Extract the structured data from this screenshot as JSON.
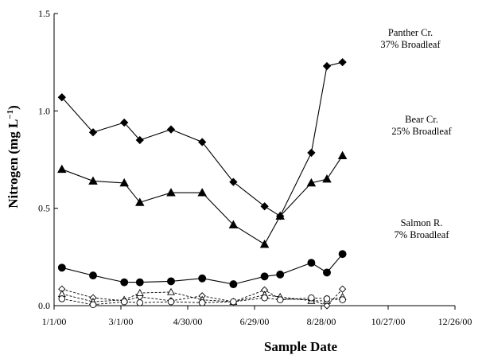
{
  "chart_data": {
    "type": "line",
    "title": "",
    "xlabel": "Sample Date",
    "ylabel_main": "Nitrogen (mg L",
    "ylabel_sup": "−1",
    "ylabel_close": ")",
    "xlim": [
      "2000-01-01",
      "2000-12-26"
    ],
    "ylim": [
      0,
      1.5
    ],
    "x_ticks": [
      {
        "date": "2000-01-01",
        "label": "1/1/00"
      },
      {
        "date": "2000-03-01",
        "label": "3/1/00"
      },
      {
        "date": "2000-04-30",
        "label": "4/30/00"
      },
      {
        "date": "2000-06-29",
        "label": "6/29/00"
      },
      {
        "date": "2000-08-28",
        "label": "8/28/00"
      },
      {
        "date": "2000-10-27",
        "label": "10/27/00"
      },
      {
        "date": "2000-12-26",
        "label": "12/26/00"
      }
    ],
    "y_ticks": [
      {
        "value": 0,
        "label": "0.0"
      },
      {
        "value": 0.5,
        "label": "0.5"
      },
      {
        "value": 1.0,
        "label": "1.0"
      },
      {
        "value": 1.5,
        "label": "1.5"
      }
    ],
    "grid": false,
    "annotations": [
      {
        "series": "Panther Cr.",
        "lines": [
          "Panther Cr.",
          "37% Broadleaf"
        ]
      },
      {
        "series": "Bear Cr.",
        "lines": [
          "Bear Cr.",
          "25% Broadleaf"
        ]
      },
      {
        "series": "Salmon R.",
        "lines": [
          "Salmon R.",
          "7% Broadleaf"
        ]
      }
    ],
    "series": [
      {
        "name": "Panther Cr.",
        "marker": "diamond",
        "filled": true,
        "dashed": false,
        "points": [
          [
            "2000-01-08",
            1.07
          ],
          [
            "2000-02-05",
            0.89
          ],
          [
            "2000-03-04",
            0.94
          ],
          [
            "2000-03-18",
            0.85
          ],
          [
            "2000-04-15",
            0.905
          ],
          [
            "2000-05-13",
            0.84
          ],
          [
            "2000-06-10",
            0.635
          ],
          [
            "2000-07-08",
            0.51
          ],
          [
            "2000-07-22",
            0.46
          ],
          [
            "2000-08-19",
            0.785
          ],
          [
            "2000-09-02",
            1.23
          ],
          [
            "2000-09-16",
            1.25
          ]
        ]
      },
      {
        "name": "Bear Cr.",
        "marker": "triangle",
        "filled": true,
        "dashed": false,
        "points": [
          [
            "2000-01-08",
            0.7
          ],
          [
            "2000-02-05",
            0.64
          ],
          [
            "2000-03-04",
            0.63
          ],
          [
            "2000-03-18",
            0.53
          ],
          [
            "2000-04-15",
            0.58
          ],
          [
            "2000-05-13",
            0.58
          ],
          [
            "2000-06-10",
            0.415
          ],
          [
            "2000-07-08",
            0.315
          ],
          [
            "2000-07-22",
            0.46
          ],
          [
            "2000-08-19",
            0.63
          ],
          [
            "2000-09-02",
            0.65
          ],
          [
            "2000-09-16",
            0.77
          ]
        ]
      },
      {
        "name": "Salmon R.",
        "marker": "circle",
        "filled": true,
        "dashed": false,
        "points": [
          [
            "2000-01-08",
            0.195
          ],
          [
            "2000-02-05",
            0.155
          ],
          [
            "2000-03-04",
            0.12
          ],
          [
            "2000-03-18",
            0.12
          ],
          [
            "2000-04-15",
            0.125
          ],
          [
            "2000-05-13",
            0.14
          ],
          [
            "2000-06-10",
            0.11
          ],
          [
            "2000-07-08",
            0.15
          ],
          [
            "2000-07-22",
            0.16
          ],
          [
            "2000-08-19",
            0.22
          ],
          [
            "2000-09-02",
            0.17
          ],
          [
            "2000-09-16",
            0.265
          ]
        ]
      },
      {
        "name": "Panther Cr. (open)",
        "marker": "diamond",
        "filled": false,
        "dashed": true,
        "points": [
          [
            "2000-01-08",
            0.085
          ],
          [
            "2000-02-05",
            0.04
          ],
          [
            "2000-03-04",
            0.025
          ],
          [
            "2000-03-18",
            0.045
          ],
          [
            "2000-04-15",
            0.025
          ],
          [
            "2000-05-13",
            0.05
          ],
          [
            "2000-06-10",
            0.02
          ],
          [
            "2000-07-08",
            0.08
          ],
          [
            "2000-07-22",
            0.035
          ],
          [
            "2000-08-19",
            0.03
          ],
          [
            "2000-09-02",
            0.0
          ],
          [
            "2000-09-16",
            0.085
          ]
        ]
      },
      {
        "name": "Bear Cr. (open)",
        "marker": "triangle",
        "filled": false,
        "dashed": true,
        "points": [
          [
            "2000-01-08",
            0.06
          ],
          [
            "2000-02-05",
            0.02
          ],
          [
            "2000-03-04",
            0.03
          ],
          [
            "2000-03-18",
            0.065
          ],
          [
            "2000-04-15",
            0.07
          ],
          [
            "2000-05-13",
            0.03
          ],
          [
            "2000-06-10",
            0.02
          ],
          [
            "2000-07-08",
            0.055
          ],
          [
            "2000-07-22",
            0.045
          ],
          [
            "2000-08-19",
            0.025
          ],
          [
            "2000-09-02",
            0.025
          ],
          [
            "2000-09-16",
            0.045
          ]
        ]
      },
      {
        "name": "Salmon R. (open)",
        "marker": "circle",
        "filled": false,
        "dashed": true,
        "points": [
          [
            "2000-01-08",
            0.035
          ],
          [
            "2000-02-05",
            0.005
          ],
          [
            "2000-03-04",
            0.02
          ],
          [
            "2000-03-18",
            0.015
          ],
          [
            "2000-04-15",
            0.02
          ],
          [
            "2000-05-13",
            0.015
          ],
          [
            "2000-06-10",
            0.02
          ],
          [
            "2000-07-08",
            0.04
          ],
          [
            "2000-07-22",
            0.03
          ],
          [
            "2000-08-19",
            0.04
          ],
          [
            "2000-09-02",
            0.035
          ],
          [
            "2000-09-16",
            0.03
          ]
        ]
      }
    ]
  }
}
